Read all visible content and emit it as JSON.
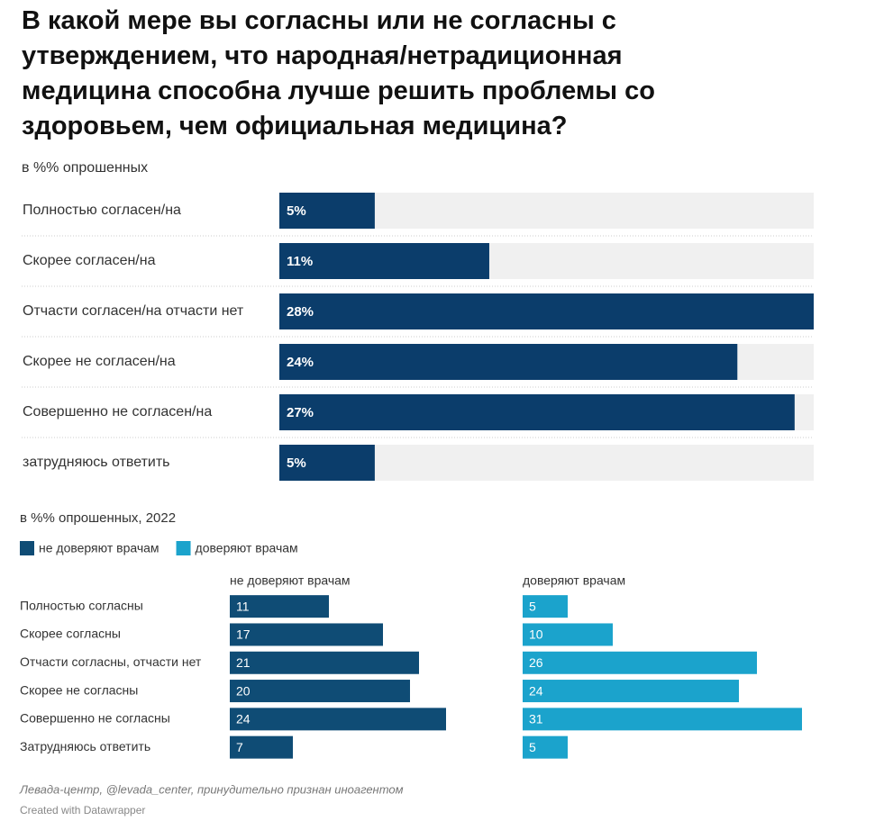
{
  "chart_data": [
    {
      "type": "bar",
      "title": "В какой мере вы согласны или не согласны с утверждением, что народная/нетрадиционная медицина способна лучше решить проблемы со здоровьем, чем официальная медицина?",
      "subtitle": "в %% опрошенных",
      "categories": [
        "Полностью согласен/на",
        "Скорее согласен/на",
        "Отчасти согласен/на отчасти нет",
        "Скорее не согласен/на",
        "Совершенно не согласен/на",
        "затрудняюсь ответить"
      ],
      "values": [
        5,
        11,
        28,
        24,
        27,
        5
      ],
      "value_labels": [
        "5%",
        "11%",
        "28%",
        "24%",
        "27%",
        "5%"
      ],
      "color": "#0b3d6b",
      "xlim": [
        0,
        28
      ]
    },
    {
      "type": "split_bar",
      "subtitle": "в %% опрошенных, 2022",
      "categories": [
        "Полностью согласны",
        "Скорее согласны",
        "Отчасти согласны, отчасти нет",
        "Скорее не согласны",
        "Совершенно не согласны",
        "Затрудняюсь ответить"
      ],
      "series": [
        {
          "name": "не доверяют врачам",
          "color": "#0f4c75",
          "values": [
            11,
            17,
            21,
            20,
            24,
            7
          ]
        },
        {
          "name": "доверяют врачам",
          "color": "#1ba3cc",
          "values": [
            5,
            10,
            26,
            24,
            31,
            5
          ]
        }
      ],
      "xlim": [
        0,
        31
      ]
    }
  ],
  "footer": {
    "source": "Левада-центр, @levada_center, принудительно признан иноагентом",
    "credit": "Created with Datawrapper"
  }
}
